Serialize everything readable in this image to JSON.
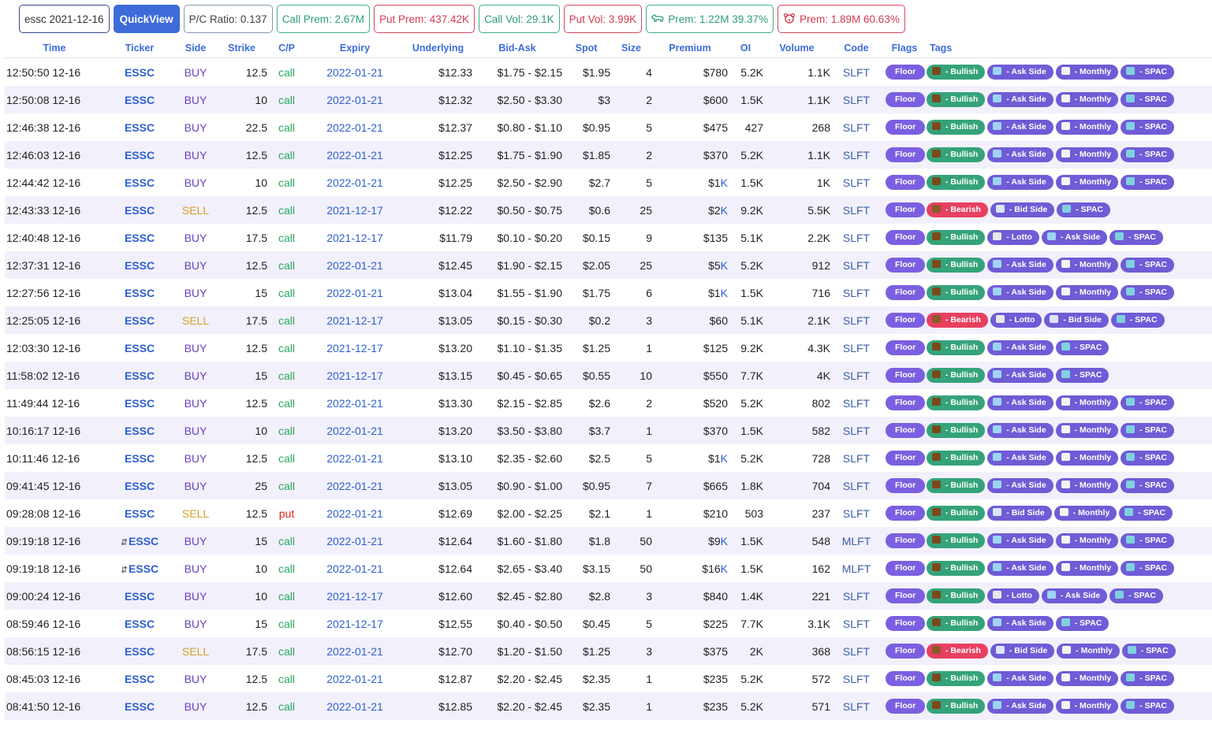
{
  "topbar": {
    "search": "essc 2021-12-16",
    "quickview": "QuickView",
    "pc_ratio": "P/C Ratio: 0.137",
    "call_prem": "Call Prem: 2.67M",
    "put_prem": "Put Prem: 437.42K",
    "call_vol": "Call Vol: 29.1K",
    "put_vol": "Put Vol: 3.99K",
    "bull_prem": "Prem: 1.22M 39.37%",
    "bear_prem": "Prem: 1.89M 60.63%",
    "bull_icon": "bull-icon",
    "bear_icon": "bear-icon"
  },
  "columns": [
    "Time",
    "Ticker",
    "Side",
    "Strike",
    "C/P",
    "Expiry",
    "Underlying",
    "Bid-Ask",
    "Spot",
    "Size",
    "Premium",
    "OI",
    "Volume",
    "Code",
    "Flags",
    "Tags"
  ],
  "rows": [
    {
      "time": "12:50:50 12-16",
      "sw": false,
      "ticker": "ESSC",
      "side": "BUY",
      "strike": "12.5",
      "cp": "call",
      "expiry": "2022-01-21",
      "underlying": "$12.33",
      "bidask": "$1.75 - $2.15",
      "spot": "$1.95",
      "size": "4",
      "premium": "$780",
      "premk": false,
      "oi": "5.2K",
      "volume": "1.1K",
      "code": "SLFT",
      "flag": "Floor",
      "tags": [
        "Bullish",
        "Ask Side",
        "Monthly",
        "SPAC"
      ]
    },
    {
      "time": "12:50:08 12-16",
      "sw": false,
      "ticker": "ESSC",
      "side": "BUY",
      "strike": "10",
      "cp": "call",
      "expiry": "2022-01-21",
      "underlying": "$12.32",
      "bidask": "$2.50 - $3.30",
      "spot": "$3",
      "size": "2",
      "premium": "$600",
      "premk": false,
      "oi": "1.5K",
      "volume": "1.1K",
      "code": "SLFT",
      "flag": "Floor",
      "tags": [
        "Bullish",
        "Ask Side",
        "Monthly",
        "SPAC"
      ]
    },
    {
      "time": "12:46:38 12-16",
      "sw": false,
      "ticker": "ESSC",
      "side": "BUY",
      "strike": "22.5",
      "cp": "call",
      "expiry": "2022-01-21",
      "underlying": "$12.37",
      "bidask": "$0.80 - $1.10",
      "spot": "$0.95",
      "size": "5",
      "premium": "$475",
      "premk": false,
      "oi": "427",
      "volume": "268",
      "code": "SLFT",
      "flag": "Floor",
      "tags": [
        "Bullish",
        "Ask Side",
        "Monthly",
        "SPAC"
      ]
    },
    {
      "time": "12:46:03 12-16",
      "sw": false,
      "ticker": "ESSC",
      "side": "BUY",
      "strike": "12.5",
      "cp": "call",
      "expiry": "2022-01-21",
      "underlying": "$12.25",
      "bidask": "$1.75 - $1.90",
      "spot": "$1.85",
      "size": "2",
      "premium": "$370",
      "premk": false,
      "oi": "5.2K",
      "volume": "1.1K",
      "code": "SLFT",
      "flag": "Floor",
      "tags": [
        "Bullish",
        "Ask Side",
        "Monthly",
        "SPAC"
      ]
    },
    {
      "time": "12:44:42 12-16",
      "sw": false,
      "ticker": "ESSC",
      "side": "BUY",
      "strike": "10",
      "cp": "call",
      "expiry": "2022-01-21",
      "underlying": "$12.25",
      "bidask": "$2.50 - $2.90",
      "spot": "$2.7",
      "size": "5",
      "premium": "$1",
      "premk": true,
      "oi": "1.5K",
      "volume": "1K",
      "code": "SLFT",
      "flag": "Floor",
      "tags": [
        "Bullish",
        "Ask Side",
        "Monthly",
        "SPAC"
      ]
    },
    {
      "time": "12:43:33 12-16",
      "sw": false,
      "ticker": "ESSC",
      "side": "SELL",
      "strike": "12.5",
      "cp": "call",
      "expiry": "2021-12-17",
      "underlying": "$12.22",
      "bidask": "$0.50 - $0.75",
      "spot": "$0.6",
      "size": "25",
      "premium": "$2",
      "premk": true,
      "oi": "9.2K",
      "volume": "5.5K",
      "code": "SLFT",
      "flag": "Floor",
      "tags": [
        "Bearish",
        "Bid Side",
        "SPAC"
      ]
    },
    {
      "time": "12:40:48 12-16",
      "sw": false,
      "ticker": "ESSC",
      "side": "BUY",
      "strike": "17.5",
      "cp": "call",
      "expiry": "2021-12-17",
      "underlying": "$11.79",
      "bidask": "$0.10 - $0.20",
      "spot": "$0.15",
      "size": "9",
      "premium": "$135",
      "premk": false,
      "oi": "5.1K",
      "volume": "2.2K",
      "code": "SLFT",
      "flag": "Floor",
      "tags": [
        "Bullish",
        "Lotto",
        "Ask Side",
        "SPAC"
      ]
    },
    {
      "time": "12:37:31 12-16",
      "sw": false,
      "ticker": "ESSC",
      "side": "BUY",
      "strike": "12.5",
      "cp": "call",
      "expiry": "2022-01-21",
      "underlying": "$12.45",
      "bidask": "$1.90 - $2.15",
      "spot": "$2.05",
      "size": "25",
      "premium": "$5",
      "premk": true,
      "oi": "5.2K",
      "volume": "912",
      "code": "SLFT",
      "flag": "Floor",
      "tags": [
        "Bullish",
        "Ask Side",
        "Monthly",
        "SPAC"
      ]
    },
    {
      "time": "12:27:56 12-16",
      "sw": false,
      "ticker": "ESSC",
      "side": "BUY",
      "strike": "15",
      "cp": "call",
      "expiry": "2022-01-21",
      "underlying": "$13.04",
      "bidask": "$1.55 - $1.90",
      "spot": "$1.75",
      "size": "6",
      "premium": "$1",
      "premk": true,
      "oi": "1.5K",
      "volume": "716",
      "code": "SLFT",
      "flag": "Floor",
      "tags": [
        "Bullish",
        "Ask Side",
        "Monthly",
        "SPAC"
      ]
    },
    {
      "time": "12:25:05 12-16",
      "sw": false,
      "ticker": "ESSC",
      "side": "SELL",
      "strike": "17.5",
      "cp": "call",
      "expiry": "2021-12-17",
      "underlying": "$13.05",
      "bidask": "$0.15 - $0.30",
      "spot": "$0.2",
      "size": "3",
      "premium": "$60",
      "premk": false,
      "oi": "5.1K",
      "volume": "2.1K",
      "code": "SLFT",
      "flag": "Floor",
      "tags": [
        "Bearish",
        "Lotto",
        "Bid Side",
        "SPAC"
      ]
    },
    {
      "time": "12:03:30 12-16",
      "sw": false,
      "ticker": "ESSC",
      "side": "BUY",
      "strike": "12.5",
      "cp": "call",
      "expiry": "2021-12-17",
      "underlying": "$13.20",
      "bidask": "$1.10 - $1.35",
      "spot": "$1.25",
      "size": "1",
      "premium": "$125",
      "premk": false,
      "oi": "9.2K",
      "volume": "4.3K",
      "code": "SLFT",
      "flag": "Floor",
      "tags": [
        "Bullish",
        "Ask Side",
        "SPAC"
      ]
    },
    {
      "time": "11:58:02 12-16",
      "sw": false,
      "ticker": "ESSC",
      "side": "BUY",
      "strike": "15",
      "cp": "call",
      "expiry": "2021-12-17",
      "underlying": "$13.15",
      "bidask": "$0.45 - $0.65",
      "spot": "$0.55",
      "size": "10",
      "premium": "$550",
      "premk": false,
      "oi": "7.7K",
      "volume": "4K",
      "code": "SLFT",
      "flag": "Floor",
      "tags": [
        "Bullish",
        "Ask Side",
        "SPAC"
      ]
    },
    {
      "time": "11:49:44 12-16",
      "sw": false,
      "ticker": "ESSC",
      "side": "BUY",
      "strike": "12.5",
      "cp": "call",
      "expiry": "2022-01-21",
      "underlying": "$13.30",
      "bidask": "$2.15 - $2.85",
      "spot": "$2.6",
      "size": "2",
      "premium": "$520",
      "premk": false,
      "oi": "5.2K",
      "volume": "802",
      "code": "SLFT",
      "flag": "Floor",
      "tags": [
        "Bullish",
        "Ask Side",
        "Monthly",
        "SPAC"
      ]
    },
    {
      "time": "10:16:17 12-16",
      "sw": false,
      "ticker": "ESSC",
      "side": "BUY",
      "strike": "10",
      "cp": "call",
      "expiry": "2022-01-21",
      "underlying": "$13.20",
      "bidask": "$3.50 - $3.80",
      "spot": "$3.7",
      "size": "1",
      "premium": "$370",
      "premk": false,
      "oi": "1.5K",
      "volume": "582",
      "code": "SLFT",
      "flag": "Floor",
      "tags": [
        "Bullish",
        "Ask Side",
        "Monthly",
        "SPAC"
      ]
    },
    {
      "time": "10:11:46 12-16",
      "sw": false,
      "ticker": "ESSC",
      "side": "BUY",
      "strike": "12.5",
      "cp": "call",
      "expiry": "2022-01-21",
      "underlying": "$13.10",
      "bidask": "$2.35 - $2.60",
      "spot": "$2.5",
      "size": "5",
      "premium": "$1",
      "premk": true,
      "oi": "5.2K",
      "volume": "728",
      "code": "SLFT",
      "flag": "Floor",
      "tags": [
        "Bullish",
        "Ask Side",
        "Monthly",
        "SPAC"
      ]
    },
    {
      "time": "09:41:45 12-16",
      "sw": false,
      "ticker": "ESSC",
      "side": "BUY",
      "strike": "25",
      "cp": "call",
      "expiry": "2022-01-21",
      "underlying": "$13.05",
      "bidask": "$0.90 - $1.00",
      "spot": "$0.95",
      "size": "7",
      "premium": "$665",
      "premk": false,
      "oi": "1.8K",
      "volume": "704",
      "code": "SLFT",
      "flag": "Floor",
      "tags": [
        "Bullish",
        "Ask Side",
        "Monthly",
        "SPAC"
      ]
    },
    {
      "time": "09:28:08 12-16",
      "sw": false,
      "ticker": "ESSC",
      "side": "SELL",
      "strike": "12.5",
      "cp": "put",
      "expiry": "2022-01-21",
      "underlying": "$12.69",
      "bidask": "$2.00 - $2.25",
      "spot": "$2.1",
      "size": "1",
      "premium": "$210",
      "premk": false,
      "oi": "503",
      "volume": "237",
      "code": "SLFT",
      "flag": "Floor",
      "tags": [
        "Bullish",
        "Bid Side",
        "Monthly",
        "SPAC"
      ]
    },
    {
      "time": "09:19:18 12-16",
      "sw": true,
      "ticker": "ESSC",
      "side": "BUY",
      "strike": "15",
      "cp": "call",
      "expiry": "2022-01-21",
      "underlying": "$12.64",
      "bidask": "$1.60 - $1.80",
      "spot": "$1.8",
      "size": "50",
      "premium": "$9",
      "premk": true,
      "oi": "1.5K",
      "volume": "548",
      "code": "MLFT",
      "flag": "Floor",
      "tags": [
        "Bullish",
        "Ask Side",
        "Monthly",
        "SPAC"
      ]
    },
    {
      "time": "09:19:18 12-16",
      "sw": true,
      "ticker": "ESSC",
      "side": "BUY",
      "strike": "10",
      "cp": "call",
      "expiry": "2022-01-21",
      "underlying": "$12.64",
      "bidask": "$2.65 - $3.40",
      "spot": "$3.15",
      "size": "50",
      "premium": "$16",
      "premk": true,
      "oi": "1.5K",
      "volume": "162",
      "code": "MLFT",
      "flag": "Floor",
      "tags": [
        "Bullish",
        "Ask Side",
        "Monthly",
        "SPAC"
      ]
    },
    {
      "time": "09:00:24 12-16",
      "sw": false,
      "ticker": "ESSC",
      "side": "BUY",
      "strike": "10",
      "cp": "call",
      "expiry": "2021-12-17",
      "underlying": "$12.60",
      "bidask": "$2.45 - $2.80",
      "spot": "$2.8",
      "size": "3",
      "premium": "$840",
      "premk": false,
      "oi": "1.4K",
      "volume": "221",
      "code": "SLFT",
      "flag": "Floor",
      "tags": [
        "Bullish",
        "Lotto",
        "Ask Side",
        "SPAC"
      ]
    },
    {
      "time": "08:59:46 12-16",
      "sw": false,
      "ticker": "ESSC",
      "side": "BUY",
      "strike": "15",
      "cp": "call",
      "expiry": "2021-12-17",
      "underlying": "$12.55",
      "bidask": "$0.40 - $0.50",
      "spot": "$0.45",
      "size": "5",
      "premium": "$225",
      "premk": false,
      "oi": "7.7K",
      "volume": "3.1K",
      "code": "SLFT",
      "flag": "Floor",
      "tags": [
        "Bullish",
        "Ask Side",
        "SPAC"
      ]
    },
    {
      "time": "08:56:15 12-16",
      "sw": false,
      "ticker": "ESSC",
      "side": "SELL",
      "strike": "17.5",
      "cp": "call",
      "expiry": "2022-01-21",
      "underlying": "$12.70",
      "bidask": "$1.20 - $1.50",
      "spot": "$1.25",
      "size": "3",
      "premium": "$375",
      "premk": false,
      "oi": "2K",
      "volume": "368",
      "code": "SLFT",
      "flag": "Floor",
      "tags": [
        "Bearish",
        "Bid Side",
        "Monthly",
        "SPAC"
      ]
    },
    {
      "time": "08:45:03 12-16",
      "sw": false,
      "ticker": "ESSC",
      "side": "BUY",
      "strike": "12.5",
      "cp": "call",
      "expiry": "2022-01-21",
      "underlying": "$12.87",
      "bidask": "$2.20 - $2.45",
      "spot": "$2.35",
      "size": "1",
      "premium": "$235",
      "premk": false,
      "oi": "5.2K",
      "volume": "572",
      "code": "SLFT",
      "flag": "Floor",
      "tags": [
        "Bullish",
        "Ask Side",
        "Monthly",
        "SPAC"
      ]
    },
    {
      "time": "08:41:50 12-16",
      "sw": false,
      "ticker": "ESSC",
      "side": "BUY",
      "strike": "12.5",
      "cp": "call",
      "expiry": "2022-01-21",
      "underlying": "$12.85",
      "bidask": "$2.20 - $2.45",
      "spot": "$2.35",
      "size": "1",
      "premium": "$235",
      "premk": false,
      "oi": "5.2K",
      "volume": "571",
      "code": "SLFT",
      "flag": "Floor",
      "tags": [
        "Bullish",
        "Ask Side",
        "Monthly",
        "SPAC"
      ]
    }
  ],
  "tag_styles": {
    "Bullish": {
      "cls": "bullish",
      "icon": "bull-icon",
      "icon_color": "#7a4a1c"
    },
    "Bearish": {
      "cls": "bearish",
      "icon": "bear-icon",
      "icon_color": "#8a5a2a"
    },
    "Ask Side": {
      "cls": "purple",
      "icon": "ask-side-icon",
      "icon_color": "#9fd3f5"
    },
    "Bid Side": {
      "cls": "purple",
      "icon": "bid-side-icon",
      "icon_color": "#dde6ff"
    },
    "Monthly": {
      "cls": "purple",
      "icon": "calendar-icon",
      "icon_color": "#f4f4f4"
    },
    "SPAC": {
      "cls": "purple",
      "icon": "spac-icon",
      "icon_color": "#7fd1e0"
    },
    "Lotto": {
      "cls": "purple",
      "icon": "lotto-icon",
      "icon_color": "#e8e8e8"
    }
  },
  "switch_symbol": "⇵",
  "k_suffix": "K",
  "tag_prefix": " - "
}
